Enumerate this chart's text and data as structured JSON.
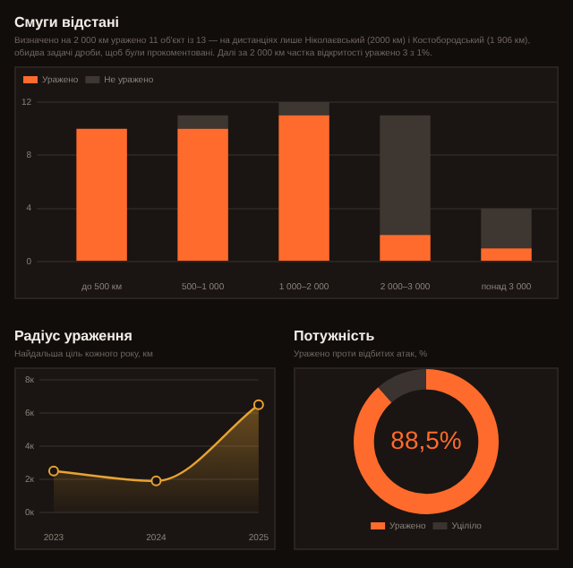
{
  "chart_data": [
    {
      "type": "bar",
      "title": "Смуги відстані",
      "subtitle": "Визначено на 2 000 км уражено 11 об'єкт із 13 — на дистанціях лише Ніколаєвський (2000 км) і Костобородський (1 906 км), обидва задачі дроби, щоб були прокоментовані. Далі за 2 000 км частка відкритості уражено 3 з 1%.",
      "categories": [
        "до 500 км",
        "500–1 000",
        "1 000–2 000",
        "2 000–3 000",
        "понад 3 000"
      ],
      "stacked": true,
      "legend": "top left",
      "grid": "y",
      "ylim": [
        0,
        12
      ],
      "yticks": [
        0,
        4,
        8,
        12
      ],
      "series": [
        {
          "name": "Уражено",
          "color": "#ff6b2c",
          "values": [
            10,
            10,
            11,
            2,
            1
          ]
        },
        {
          "name": "Не уражено",
          "color": "#3d3631",
          "values": [
            0,
            1,
            1,
            9,
            3
          ]
        }
      ]
    },
    {
      "type": "area",
      "title": "Радіус ураження",
      "subtitle": "Найдальша ціль кожного року, км",
      "categories": [
        "2023",
        "2024",
        "2025"
      ],
      "grid": "y",
      "marker": "circle",
      "ylim": [
        0,
        8
      ],
      "yticks": [
        {
          "value": 0,
          "label": "0к"
        },
        {
          "value": 2,
          "label": "2к"
        },
        {
          "value": 4,
          "label": "4к"
        },
        {
          "value": 6,
          "label": "6к"
        },
        {
          "value": 8,
          "label": "8к"
        }
      ],
      "series": [
        {
          "color": "#e8a332",
          "values": [
            2.5,
            1.9,
            6.5
          ]
        }
      ]
    },
    {
      "type": "donut",
      "title": "Потужність",
      "subtitle": "Уражено проти відбитих атак, %",
      "categories": [
        "Уражено",
        "Уціліло"
      ],
      "values": [
        88.5,
        11.5
      ],
      "colors": [
        "#ff6b2c",
        "#3a3330"
      ],
      "value_labels": [
        "88,5%",
        null
      ],
      "legend": "bottom"
    }
  ]
}
